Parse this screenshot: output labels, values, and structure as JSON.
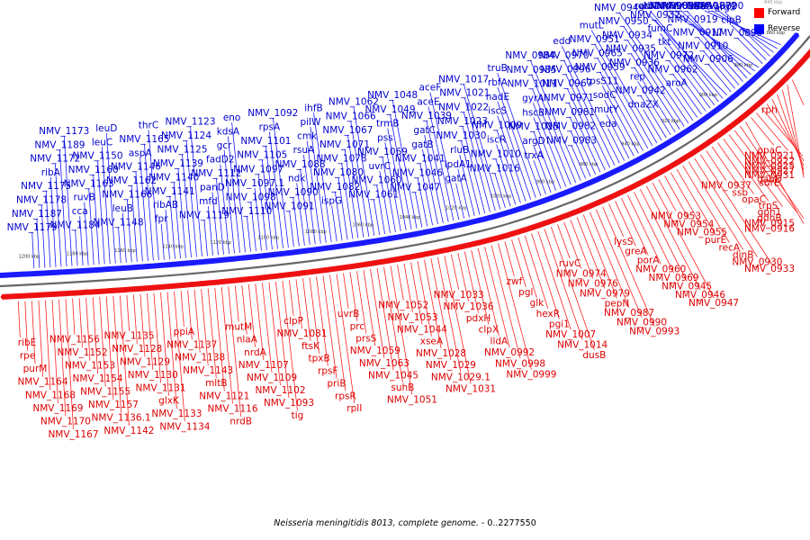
{
  "legend": {
    "forward_label": "Forward",
    "reverse_label": "Reverse",
    "forward_color": "#ff0000",
    "reverse_color": "#0000ff"
  },
  "top_scale": "840 kbp",
  "caption": {
    "organism": "Neisseria meningitidis 8013, complete genome.",
    "range": " - 0..2277550"
  },
  "ticks": [
    "1200 kbp",
    "1180 kbp",
    "1160 kbp",
    "1140 kbp",
    "1120 kbp",
    "1100 kbp",
    "1080 kbp",
    "1060 kbp",
    "1040 kbp",
    "1020 kbp",
    "1000 kbp",
    "980 kbp",
    "960 kbp",
    "940 kbp",
    "920 kbp",
    "900 kbp",
    "880 kbp",
    "860 kbp"
  ],
  "reverse_labels": [
    "NMV_1179",
    "NMV_1187",
    "NMV_1178",
    "NMV_1175",
    "ribA",
    "NMV_1172",
    "NMV_1189",
    "NMV_1173",
    "NMV_1184",
    "cca",
    "ruvB",
    "NMV_1163",
    "NMV_1160",
    "NMV_1150",
    "leuC",
    "leuD",
    "NMV_1148",
    "leuB",
    "NMV_1166",
    "NMV_1162",
    "NMV_1146",
    "aspA",
    "NMV_1165",
    "thrC",
    "fpr",
    "ribAB",
    "NMV_1141",
    "NMV_1140",
    "NMV_1139",
    "NMV_1125",
    "NMV_1124",
    "NMV_1123",
    "NMV_1119",
    "mfd",
    "panD",
    "NMV_1112",
    "fadD2",
    "gcr",
    "kdsA",
    "eno",
    "NMV_1110",
    "NMV_1098",
    "NMV_1097.1",
    "NMV_1097",
    "NMV_1105",
    "NMV_1101",
    "rpsA",
    "NMV_1092",
    "NMV_1091",
    "NMV_1090",
    "ndk",
    "NMV_1088",
    "rsuA",
    "cmk",
    "pilW",
    "ihfB",
    "ispG",
    "NMV_1082",
    "NMV_1080",
    "NMV_1078",
    "NMV_1071",
    "NMV_1067",
    "NMV_1066",
    "NMV_1062",
    "NMV_1061",
    "NMV_1060",
    "uvrC",
    "NMV_1069",
    "pss",
    "trmB",
    "NMV_1049",
    "NMV_1048",
    "NMV_1047",
    "NMV_1046",
    "NMV_1041",
    "gatB",
    "gatC",
    "NMV_1039",
    "aceE",
    "aceF",
    "gatA",
    "lpdA1",
    "rluB",
    "NMV_1030",
    "NMV_1023",
    "NMV_1022",
    "NMV_1021",
    "NMV_1017",
    "NMV_1016",
    "NMV_1010",
    "iscR",
    "NMV_1009",
    "iscS",
    "nadE",
    "rbfA",
    "truB",
    "trxA",
    "argD",
    "NMV_1015",
    "hscB",
    "gyrA",
    "NMV_1011",
    "NMV_0985",
    "NMV_0984",
    "NMV_0983",
    "NMV_0982",
    "NMV_0981",
    "NMV_0971",
    "NMV_0967",
    "NMV_0996",
    "NMV_0970",
    "edd",
    "eda",
    "mutY",
    "sodC",
    "tpsS11",
    "NMV_0959",
    "NMV_0965",
    "NMV_0951",
    "mutL",
    "dnaZX",
    "NMV_0942",
    "rep",
    "NMV_0936",
    "NMV_0935",
    "NMV_0934",
    "NMV_0950",
    "NMV_0949",
    "aroA",
    "NMV_0962",
    "NMV_0972",
    "tkt",
    "fumC",
    "NMV_0932",
    "aroD",
    "recX",
    "NMV_0906",
    "NMV_0910",
    "NMV_0917",
    "NMV_0919",
    "NMV_0885",
    "NMV_0888",
    "NMV_0894",
    "NMV_0905",
    "NMV_0899",
    "clpB",
    "argS",
    "NMV_0890",
    "NMV_0872",
    "ackA1"
  ],
  "forward_labels": [
    "ribE",
    "rpe",
    "purM",
    "NMV_1164",
    "NMV_1168",
    "NMV_1169",
    "NMV_1170",
    "NMV_1167",
    "NMV_1156",
    "NMV_1152",
    "NMV_1153",
    "NMV_1154",
    "NMV_1155",
    "NMV_1157",
    "NMV_1136.1",
    "NMV_1142",
    "NMV_1135",
    "NMV_1128",
    "NMV_1129",
    "NMV_1130",
    "NMV_1131",
    "glxK",
    "NMV_1133",
    "NMV_1134",
    "ppiA",
    "NMV_1137",
    "NMV_1138",
    "NMV_1143",
    "mltB",
    "NMV_1121",
    "NMV_1116",
    "nrdB",
    "mutM",
    "nlaA",
    "nrdA",
    "NMV_1107",
    "NMV_1109",
    "NMV_1102",
    "NMV_1093",
    "tig",
    "clpP",
    "NMV_1081",
    "ftsK",
    "tpxB",
    "rpsF",
    "priB",
    "rpsR",
    "rplI",
    "uvrB",
    "prc",
    "prsS",
    "NMV_1059",
    "NMV_1063",
    "NMV_1045",
    "suhB",
    "NMV_1051",
    "NMV_1052",
    "NMV_1053",
    "NMV_1044",
    "xseA",
    "NMV_1028",
    "NMV_1029",
    "NMV_1029.1",
    "NMV_1031",
    "NMV_1033",
    "NMV_1036",
    "pdxH",
    "clpX",
    "lldA",
    "NMV_0992",
    "NMV_0998",
    "NMV_0999",
    "zwf",
    "pgl",
    "glk",
    "hexR",
    "pgi1",
    "NMV_1007",
    "NMV_1014",
    "dusB",
    "ruvC",
    "NMV_0974",
    "NMV_0976",
    "NMV_0979",
    "pepN",
    "NMV_0987",
    "NMV_0990",
    "NMV_0993",
    "lysS",
    "greA",
    "porA",
    "NMV_0960",
    "NMV_0969",
    "NMV_0945",
    "NMV_0946",
    "NMV_0947",
    "NMV_0953",
    "NMV_0954",
    "NMV_0955",
    "purE",
    "recA",
    "dinB",
    "NMV_0930",
    "NMV_0933",
    "NMV_0937",
    "ssb",
    "opaC",
    "trpS",
    "gph1",
    "gdhB",
    "NMV_0915",
    "NMV_0916",
    "opaC",
    "NMV_0921",
    "NMV_0922",
    "NMV_0925",
    "NMV_0927",
    "NMV_0931",
    "gabD",
    "surE",
    "rph"
  ]
}
